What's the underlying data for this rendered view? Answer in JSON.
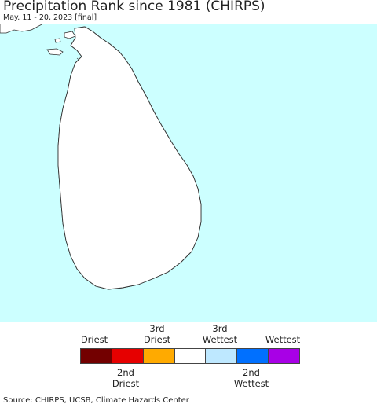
{
  "header": {
    "title": "Precipitation Rank since 1981 (CHIRPS)",
    "subtitle": "May. 11 - 20, 2023 [final]"
  },
  "map": {
    "ocean_color": "#ccffff",
    "land_color": "#ffffff",
    "boundary_color": "#333333",
    "region": "Sri Lanka"
  },
  "legend": {
    "top_labels": [
      {
        "text": "Driest",
        "slot": 0
      },
      {
        "text": "3rd\nDriest",
        "slot": 2
      },
      {
        "text": "3rd\nWettest",
        "slot": 4
      },
      {
        "text": "Wettest",
        "slot": 6
      }
    ],
    "bottom_labels": [
      {
        "text": "2nd\nDriest",
        "slot": 1
      },
      {
        "text": "2nd\nWettest",
        "slot": 5
      }
    ],
    "colors": [
      "#730000",
      "#e60000",
      "#ffaa00",
      "#ffffff",
      "#bee8ff",
      "#0070ff",
      "#a800e6"
    ]
  },
  "footer": {
    "source": "Source: CHIRPS, UCSB, Climate Hazards Center"
  }
}
